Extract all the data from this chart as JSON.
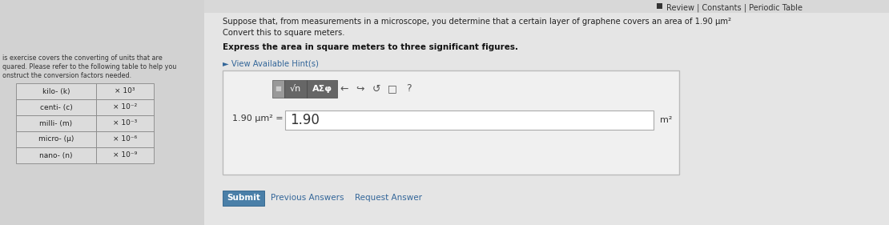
{
  "bg_color": "#c8c8c8",
  "left_panel_bg": "#d8d8d8",
  "right_panel_bg": "#e8e8e8",
  "header_text": "Review | Constants | Periodic Table",
  "problem_line1": "Suppose that, from measurements in a microscope, you determine that a certain layer of graphene covers an area of 1.90 μm²",
  "problem_line2": "Convert this to square meters.",
  "bold_instruction": "Express the area in square meters to three significant figures.",
  "hint_text": "► View Available Hint(s)",
  "left_text_lines": [
    "is exercise covers the converting of units that are",
    "quared. Please refer to the following table to help you",
    "onstruct the conversion factors needed."
  ],
  "table_rows": [
    [
      "kilo- (k)",
      "× 10³"
    ],
    [
      "centi- (c)",
      "× 10⁻²"
    ],
    [
      "milli- (m)",
      "× 10⁻³"
    ],
    [
      "micro- (μ)",
      "× 10⁻⁶"
    ],
    [
      "nano- (n)",
      "× 10⁻⁹"
    ]
  ],
  "equation_left": "1.90 μm² =",
  "equation_value": "1.90",
  "equation_unit": "m²",
  "submit_text": "Submit",
  "prev_answers_text": "Previous Answers",
  "request_answer_text": "Request Answer",
  "submit_btn_color": "#4a7fa8",
  "submit_btn_text_color": "#ffffff"
}
